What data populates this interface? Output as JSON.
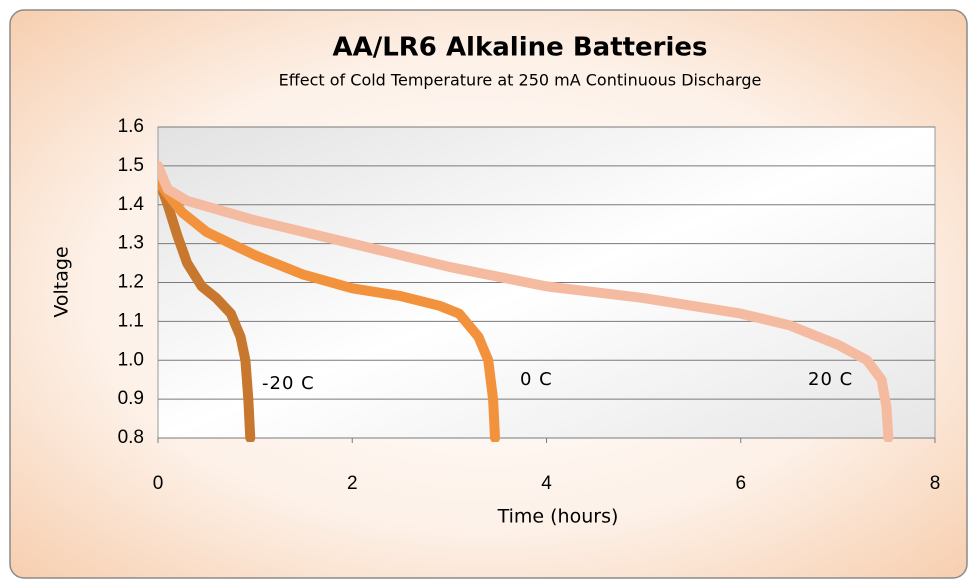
{
  "chart_data": {
    "type": "line",
    "title": "AA/LR6 Alkaline Batteries",
    "subtitle": "Effect of Cold Temperature at 250 mA Continuous Discharge",
    "x_label": "Time (hours)",
    "y_label": "Voltage",
    "xlim": [
      0,
      8
    ],
    "xticks": [
      0,
      2,
      4,
      6,
      8
    ],
    "ylim": [
      0.8,
      1.6
    ],
    "yticks": [
      0.8,
      0.9,
      {
        "value": 1,
        "label": "1.0"
      },
      1.1,
      1.2,
      1.3,
      1.4,
      1.5,
      1.6
    ],
    "grid": true,
    "series": [
      {
        "name": "-20 C",
        "color": "#c8772f",
        "x": [
          0,
          0.1,
          0.2,
          0.3,
          0.45,
          0.6,
          0.75,
          0.85,
          0.9,
          0.93,
          0.95
        ],
        "values": [
          1.47,
          1.4,
          1.32,
          1.25,
          1.19,
          1.16,
          1.12,
          1.06,
          1.0,
          0.9,
          0.8
        ]
      },
      {
        "name": "0 C",
        "color": "#f3923c",
        "x": [
          0,
          0.25,
          0.5,
          1,
          1.5,
          2,
          2.5,
          2.9,
          3.1,
          3.3,
          3.4,
          3.45,
          3.47
        ],
        "values": [
          1.46,
          1.38,
          1.33,
          1.27,
          1.22,
          1.185,
          1.165,
          1.14,
          1.12,
          1.06,
          1.0,
          0.9,
          0.8
        ]
      },
      {
        "name": "20 C",
        "color": "#f5bba0",
        "x": [
          0,
          0.1,
          0.3,
          1,
          2,
          3,
          4,
          5,
          6,
          6.5,
          7,
          7.3,
          7.45,
          7.5,
          7.52
        ],
        "values": [
          1.5,
          1.44,
          1.41,
          1.36,
          1.3,
          1.24,
          1.19,
          1.16,
          1.12,
          1.09,
          1.04,
          1.0,
          0.95,
          0.88,
          0.8
        ]
      }
    ]
  }
}
